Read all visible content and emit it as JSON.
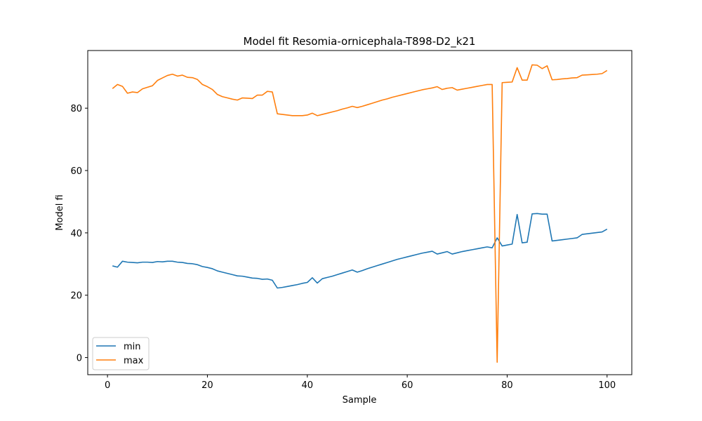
{
  "chart_data": {
    "type": "line",
    "title": "Model fit Resomia-ornicephala-T898-D2_k21",
    "xlabel": "Sample",
    "ylabel": "Model fi",
    "xlim": [
      -3.95,
      104.95
    ],
    "ylim": [
      -5.5,
      98.5
    ],
    "xticks": [
      0,
      20,
      40,
      60,
      80,
      100
    ],
    "yticks": [
      0,
      20,
      40,
      60,
      80
    ],
    "grid": false,
    "legend_position": "lower-left",
    "x": [
      1,
      2,
      3,
      4,
      5,
      6,
      7,
      8,
      9,
      10,
      11,
      12,
      13,
      14,
      15,
      16,
      17,
      18,
      19,
      20,
      21,
      22,
      23,
      24,
      25,
      26,
      27,
      28,
      29,
      30,
      31,
      32,
      33,
      34,
      35,
      36,
      37,
      38,
      39,
      40,
      41,
      42,
      43,
      44,
      45,
      46,
      47,
      48,
      49,
      50,
      51,
      52,
      53,
      54,
      55,
      56,
      57,
      58,
      59,
      60,
      61,
      62,
      63,
      64,
      65,
      66,
      67,
      68,
      69,
      70,
      71,
      72,
      73,
      74,
      75,
      76,
      77,
      78,
      79,
      80,
      81,
      82,
      83,
      84,
      85,
      86,
      87,
      88,
      89,
      90,
      91,
      92,
      93,
      94,
      95,
      96,
      97,
      98,
      99,
      100
    ],
    "series": [
      {
        "name": "min",
        "color": "#1f77b4",
        "values": [
          29.4,
          29.0,
          30.9,
          30.6,
          30.5,
          30.4,
          30.6,
          30.6,
          30.5,
          30.8,
          30.7,
          30.9,
          30.9,
          30.6,
          30.5,
          30.2,
          30.1,
          29.8,
          29.2,
          28.9,
          28.5,
          27.8,
          27.4,
          27.0,
          26.6,
          26.2,
          26.1,
          25.8,
          25.5,
          25.4,
          25.1,
          25.2,
          24.8,
          22.3,
          22.5,
          22.8,
          23.1,
          23.4,
          23.8,
          24.1,
          25.6,
          23.9,
          25.3,
          25.7,
          26.1,
          26.6,
          27.1,
          27.6,
          28.1,
          27.4,
          27.9,
          28.5,
          29.0,
          29.5,
          30.0,
          30.5,
          31.0,
          31.5,
          31.9,
          32.3,
          32.7,
          33.1,
          33.5,
          33.8,
          34.1,
          33.2,
          33.6,
          34.0,
          33.2,
          33.6,
          34.0,
          34.3,
          34.6,
          34.9,
          35.2,
          35.5,
          35.2,
          38.4,
          35.8,
          36.1,
          36.4,
          45.9,
          36.8,
          37.0,
          46.1,
          46.2,
          46.0,
          46.0,
          37.4,
          37.6,
          37.8,
          38.0,
          38.2,
          38.4,
          39.5,
          39.7,
          39.9,
          40.1,
          40.3,
          41.2
        ]
      },
      {
        "name": "max",
        "color": "#ff7f0e",
        "values": [
          86.3,
          87.6,
          87.0,
          84.8,
          85.2,
          85.0,
          86.2,
          86.7,
          87.2,
          88.9,
          89.7,
          90.5,
          90.9,
          90.3,
          90.6,
          89.9,
          89.8,
          89.2,
          87.6,
          86.9,
          86.0,
          84.4,
          83.7,
          83.3,
          82.9,
          82.6,
          83.3,
          83.2,
          83.1,
          84.2,
          84.2,
          85.4,
          85.2,
          78.2,
          78.0,
          77.8,
          77.6,
          77.6,
          77.6,
          77.8,
          78.4,
          77.6,
          78.0,
          78.4,
          78.8,
          79.2,
          79.7,
          80.1,
          80.6,
          80.2,
          80.6,
          81.1,
          81.6,
          82.1,
          82.6,
          83.0,
          83.5,
          83.9,
          84.3,
          84.7,
          85.1,
          85.5,
          85.9,
          86.2,
          86.5,
          86.9,
          86.0,
          86.4,
          86.6,
          85.8,
          86.1,
          86.4,
          86.7,
          87.0,
          87.3,
          87.6,
          87.6,
          -1.5,
          88.2,
          88.3,
          88.4,
          93.0,
          89.0,
          89.0,
          93.9,
          93.8,
          92.7,
          93.6,
          89.1,
          89.2,
          89.4,
          89.5,
          89.7,
          89.8,
          90.6,
          90.7,
          90.8,
          90.9,
          91.1,
          92.1
        ]
      }
    ]
  }
}
